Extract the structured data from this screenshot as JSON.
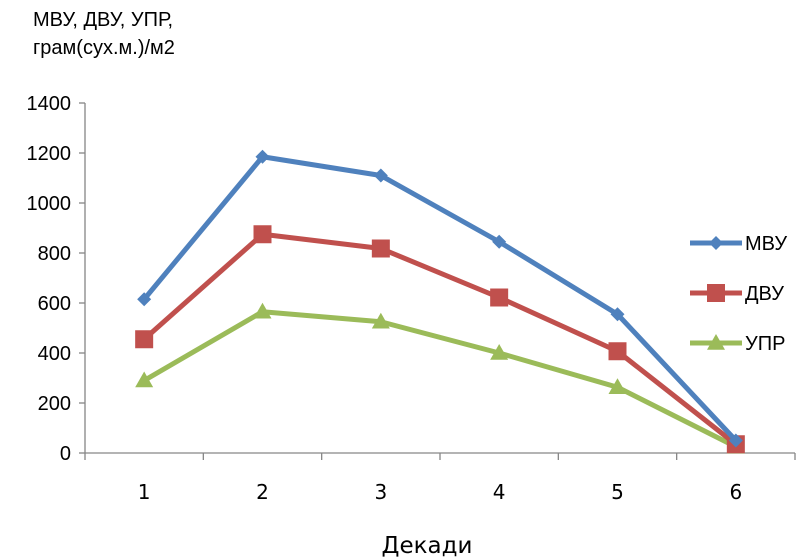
{
  "chart_data": {
    "type": "line",
    "ylabel_lines": [
      "МВУ, ДВУ, УПР,",
      "грам(сух.м.)/м2"
    ],
    "xlabel": "Декади",
    "categories": [
      "1",
      "2",
      "3",
      "4",
      "5",
      "6"
    ],
    "ylim": [
      0,
      1400
    ],
    "yticks": [
      "0",
      "200",
      "400",
      "600",
      "800",
      "1000",
      "1200",
      "1400"
    ],
    "grid": false,
    "legend_position": "right",
    "series": [
      {
        "name": "МВУ",
        "values": [
          615,
          1185,
          1110,
          845,
          555,
          50
        ],
        "color": "#4f81bd",
        "marker": "diamond"
      },
      {
        "name": "ДВУ",
        "values": [
          455,
          875,
          818,
          622,
          407,
          35
        ],
        "color": "#c0504d",
        "marker": "square"
      },
      {
        "name": "УПР",
        "values": [
          290,
          565,
          525,
          400,
          263,
          25
        ],
        "color": "#9bbb59",
        "marker": "triangle"
      }
    ]
  }
}
